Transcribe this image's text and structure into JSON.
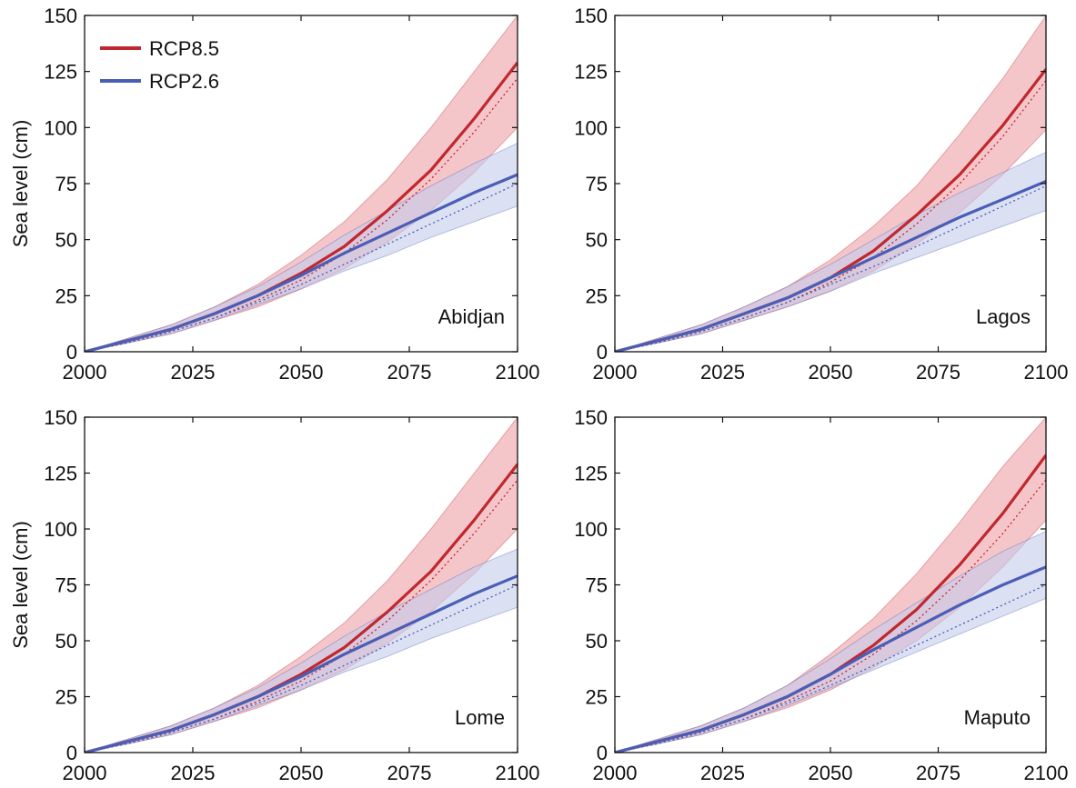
{
  "colors": {
    "rcp85": "#c0282d",
    "rcp85_band": "#f0b3b8",
    "rcp26": "#4a5eb5",
    "rcp26_band": "#c5cbeb",
    "axis": "#111111"
  },
  "legend": [
    {
      "label": "RCP8.5",
      "color": "#c0282d"
    },
    {
      "label": "RCP2.6",
      "color": "#4a5eb5"
    }
  ],
  "chart_data": [
    {
      "type": "line",
      "title": "Abidjan",
      "xlabel": "",
      "ylabel": "Sea level (cm)",
      "xlim": [
        2000,
        2100
      ],
      "ylim": [
        0,
        150
      ],
      "xticks": [
        "2000",
        "2025",
        "2050",
        "2075",
        "2100"
      ],
      "yticks": [
        "0",
        "25",
        "50",
        "75",
        "100",
        "125",
        "150"
      ],
      "x": [
        2000,
        2010,
        2020,
        2030,
        2040,
        2050,
        2060,
        2070,
        2080,
        2090,
        2100
      ],
      "series": [
        {
          "name": "RCP8.5",
          "values": [
            0,
            5,
            10,
            17,
            25,
            35,
            47,
            63,
            81,
            104,
            129
          ],
          "lower": [
            0,
            4,
            8,
            14,
            20,
            28,
            37,
            49,
            63,
            80,
            100
          ],
          "upper": [
            0,
            6,
            12,
            20,
            30,
            43,
            58,
            77,
            100,
            125,
            150
          ],
          "dotted": [
            0,
            4,
            9,
            15,
            23,
            32,
            44,
            59,
            77,
            98,
            122
          ]
        },
        {
          "name": "RCP2.6",
          "values": [
            0,
            5,
            10,
            17,
            25,
            34,
            44,
            53,
            62,
            71,
            79
          ],
          "lower": [
            0,
            4,
            8,
            14,
            21,
            28,
            36,
            43,
            51,
            58,
            65
          ],
          "upper": [
            0,
            6,
            12,
            20,
            29,
            40,
            52,
            63,
            74,
            84,
            93
          ],
          "dotted": [
            0,
            4,
            9,
            15,
            22,
            30,
            39,
            48,
            57,
            66,
            75
          ]
        }
      ]
    },
    {
      "type": "line",
      "title": "Lagos",
      "xlabel": "",
      "ylabel": "",
      "xlim": [
        2000,
        2100
      ],
      "ylim": [
        0,
        150
      ],
      "xticks": [
        "2000",
        "2025",
        "2050",
        "2075",
        "2100"
      ],
      "yticks": [
        "0",
        "25",
        "50",
        "75",
        "100",
        "125",
        "150"
      ],
      "x": [
        2000,
        2010,
        2020,
        2030,
        2040,
        2050,
        2060,
        2070,
        2080,
        2090,
        2100
      ],
      "series": [
        {
          "name": "RCP8.5",
          "values": [
            0,
            5,
            10,
            17,
            24,
            33,
            45,
            61,
            79,
            101,
            126
          ],
          "lower": [
            0,
            4,
            8,
            14,
            20,
            27,
            36,
            48,
            62,
            79,
            99
          ],
          "upper": [
            0,
            6,
            12,
            20,
            29,
            41,
            56,
            74,
            97,
            122,
            150
          ],
          "dotted": [
            0,
            4,
            9,
            15,
            22,
            31,
            42,
            57,
            75,
            96,
            121
          ]
        },
        {
          "name": "RCP2.6",
          "values": [
            0,
            5,
            10,
            17,
            24,
            33,
            42,
            51,
            60,
            68,
            76
          ],
          "lower": [
            0,
            4,
            8,
            14,
            20,
            27,
            35,
            42,
            49,
            56,
            63
          ],
          "upper": [
            0,
            6,
            12,
            20,
            29,
            39,
            50,
            61,
            71,
            80,
            89
          ],
          "dotted": [
            0,
            4,
            9,
            15,
            22,
            30,
            38,
            47,
            56,
            65,
            74
          ]
        }
      ]
    },
    {
      "type": "line",
      "title": "Lome",
      "xlabel": "",
      "ylabel": "Sea level (cm)",
      "xlim": [
        2000,
        2100
      ],
      "ylim": [
        0,
        150
      ],
      "xticks": [
        "2000",
        "2025",
        "2050",
        "2075",
        "2100"
      ],
      "yticks": [
        "0",
        "25",
        "50",
        "75",
        "100",
        "125",
        "150"
      ],
      "x": [
        2000,
        2010,
        2020,
        2030,
        2040,
        2050,
        2060,
        2070,
        2080,
        2090,
        2100
      ],
      "series": [
        {
          "name": "RCP8.5",
          "values": [
            0,
            5,
            10,
            17,
            25,
            35,
            47,
            63,
            81,
            104,
            129
          ],
          "lower": [
            0,
            4,
            8,
            14,
            20,
            28,
            37,
            49,
            63,
            80,
            100
          ],
          "upper": [
            0,
            6,
            12,
            20,
            30,
            43,
            58,
            77,
            100,
            125,
            150
          ],
          "dotted": [
            0,
            4,
            9,
            15,
            23,
            32,
            44,
            59,
            77,
            98,
            122
          ]
        },
        {
          "name": "RCP2.6",
          "values": [
            0,
            5,
            10,
            17,
            25,
            34,
            44,
            53,
            62,
            71,
            79
          ],
          "lower": [
            0,
            4,
            8,
            14,
            21,
            28,
            36,
            43,
            51,
            58,
            65
          ],
          "upper": [
            0,
            6,
            12,
            20,
            29,
            40,
            52,
            63,
            73,
            83,
            91
          ],
          "dotted": [
            0,
            4,
            9,
            15,
            22,
            30,
            39,
            48,
            57,
            66,
            75
          ]
        }
      ]
    },
    {
      "type": "line",
      "title": "Maputo",
      "xlabel": "",
      "ylabel": "",
      "xlim": [
        2000,
        2100
      ],
      "ylim": [
        0,
        150
      ],
      "xticks": [
        "2000",
        "2025",
        "2050",
        "2075",
        "2100"
      ],
      "yticks": [
        "0",
        "25",
        "50",
        "75",
        "100",
        "125",
        "150"
      ],
      "x": [
        2000,
        2010,
        2020,
        2030,
        2040,
        2050,
        2060,
        2070,
        2080,
        2090,
        2100
      ],
      "series": [
        {
          "name": "RCP8.5",
          "values": [
            0,
            5,
            10,
            17,
            25,
            35,
            48,
            64,
            84,
            107,
            133
          ],
          "lower": [
            0,
            4,
            8,
            14,
            20,
            28,
            38,
            50,
            65,
            83,
            104
          ],
          "upper": [
            0,
            6,
            12,
            20,
            30,
            44,
            60,
            80,
            103,
            128,
            150
          ],
          "dotted": [
            0,
            4,
            9,
            15,
            23,
            32,
            44,
            59,
            77,
            98,
            122
          ]
        },
        {
          "name": "RCP2.6",
          "values": [
            0,
            5,
            10,
            17,
            25,
            35,
            46,
            56,
            66,
            75,
            83
          ],
          "lower": [
            0,
            4,
            8,
            14,
            21,
            29,
            37,
            45,
            53,
            61,
            69
          ],
          "upper": [
            0,
            6,
            12,
            20,
            30,
            42,
            55,
            67,
            79,
            90,
            99
          ],
          "dotted": [
            0,
            4,
            9,
            15,
            22,
            30,
            39,
            48,
            57,
            66,
            75
          ]
        }
      ]
    }
  ]
}
